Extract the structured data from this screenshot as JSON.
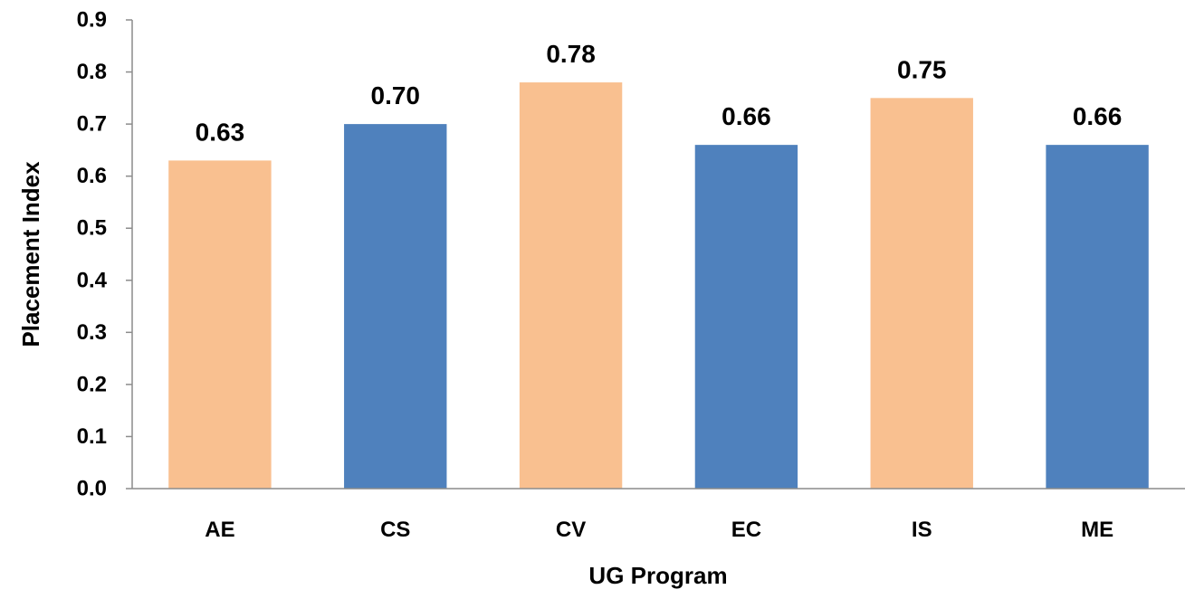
{
  "chart_data": {
    "type": "bar",
    "title": "",
    "xlabel": "UG Program",
    "ylabel": "Placement Index",
    "categories": [
      "AE",
      "CS",
      "CV",
      "EC",
      "IS",
      "ME"
    ],
    "values": [
      0.63,
      0.7,
      0.78,
      0.66,
      0.75,
      0.66
    ],
    "data_labels": [
      "0.63",
      "0.70",
      "0.78",
      "0.66",
      "0.75",
      "0.66"
    ],
    "bar_colors": [
      "#F9C090",
      "#4F81BD",
      "#F9C090",
      "#4F81BD",
      "#F9C090",
      "#4F81BD"
    ],
    "ylim": [
      0,
      0.9
    ],
    "yticks": [
      0.0,
      0.1,
      0.2,
      0.3,
      0.4,
      0.5,
      0.6,
      0.7,
      0.8,
      0.9
    ],
    "ytick_labels": [
      "0.0",
      "0.1",
      "0.2",
      "0.3",
      "0.4",
      "0.5",
      "0.6",
      "0.7",
      "0.8",
      "0.9"
    ],
    "grid": false,
    "legend": "none"
  }
}
